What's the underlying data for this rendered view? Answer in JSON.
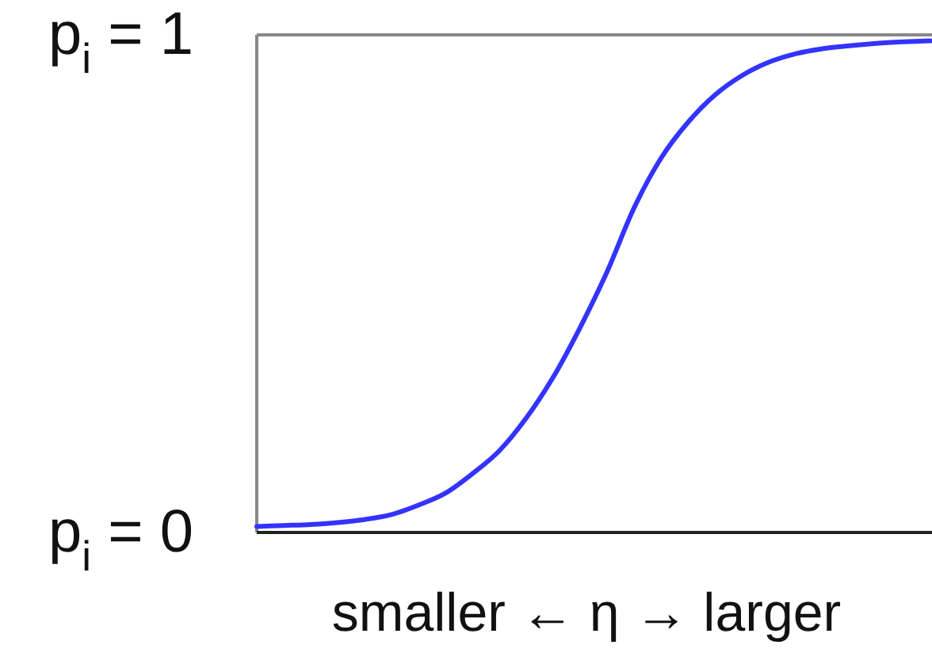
{
  "chart_data": {
    "type": "line",
    "xlabel": "smaller ← η → larger",
    "categories": [
      null,
      null,
      null,
      null,
      null,
      null,
      null,
      null,
      null,
      null,
      null,
      null,
      null,
      null,
      null,
      null,
      null,
      null,
      null,
      null,
      null,
      null,
      null,
      null,
      null,
      null
    ],
    "series": [
      {
        "color": "#3333ff",
        "values": [
          0.012,
          0.014,
          0.016,
          0.02,
          0.026,
          0.036,
          0.055,
          0.079,
          0.118,
          0.164,
          0.23,
          0.312,
          0.412,
          0.524,
          0.652,
          0.752,
          0.824,
          0.879,
          0.918,
          0.945,
          0.962,
          0.972,
          0.978,
          0.983,
          0.986,
          0.988
        ]
      }
    ],
    "ylim": [
      0,
      1
    ],
    "yticks": [
      {
        "value": 0,
        "label": "p$_{i}$ = 0"
      },
      {
        "value": 1,
        "label": "p$_{i}$ = 1"
      }
    ],
    "tick_labels": "y"
  }
}
